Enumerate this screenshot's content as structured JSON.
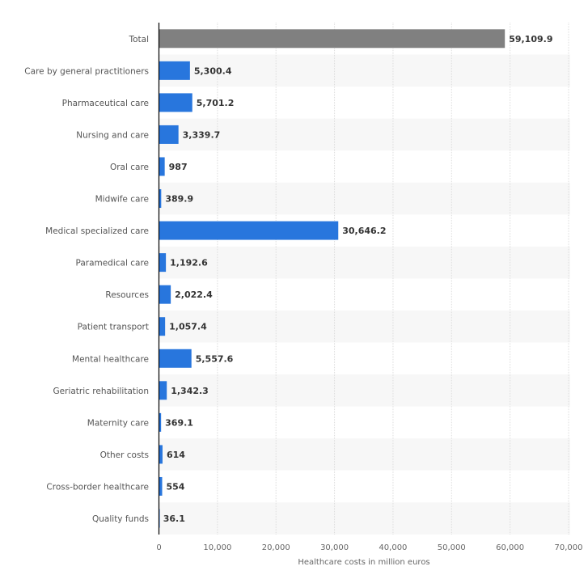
{
  "chart_data": {
    "type": "bar",
    "orientation": "horizontal",
    "categories": [
      "Total",
      "Care by general practitioners",
      "Pharmaceutical care",
      "Nursing and care",
      "Oral care",
      "Midwife care",
      "Medical specialized care",
      "Paramedical care",
      "Resources",
      "Patient transport",
      "Mental healthcare",
      "Geriatric rehabilitation",
      "Maternity care",
      "Other costs",
      "Cross-border healthcare",
      "Quality funds"
    ],
    "values": [
      59109.9,
      5300.4,
      5701.2,
      3339.7,
      987,
      389.9,
      30646.2,
      1192.6,
      2022.4,
      1057.4,
      5557.6,
      1342.3,
      369.1,
      614,
      554,
      36.1
    ],
    "value_labels": [
      "59,109.9",
      "5,300.4",
      "5,701.2",
      "3,339.7",
      "987",
      "389.9",
      "30,646.2",
      "1,192.6",
      "2,022.4",
      "1,057.4",
      "5,557.6",
      "1,342.3",
      "369.1",
      "614",
      "554",
      "36.1"
    ],
    "xlabel": "Healthcare costs in million euros",
    "ylabel": "",
    "xlim": [
      0,
      70000
    ],
    "xticks": [
      "0",
      "10,000",
      "20,000",
      "30,000",
      "40,000",
      "50,000",
      "60,000",
      "70,000"
    ],
    "grid": true,
    "colors": {
      "total": "#808080",
      "bar": "#2876dd",
      "row_stripe": "#f7f7f7"
    }
  }
}
